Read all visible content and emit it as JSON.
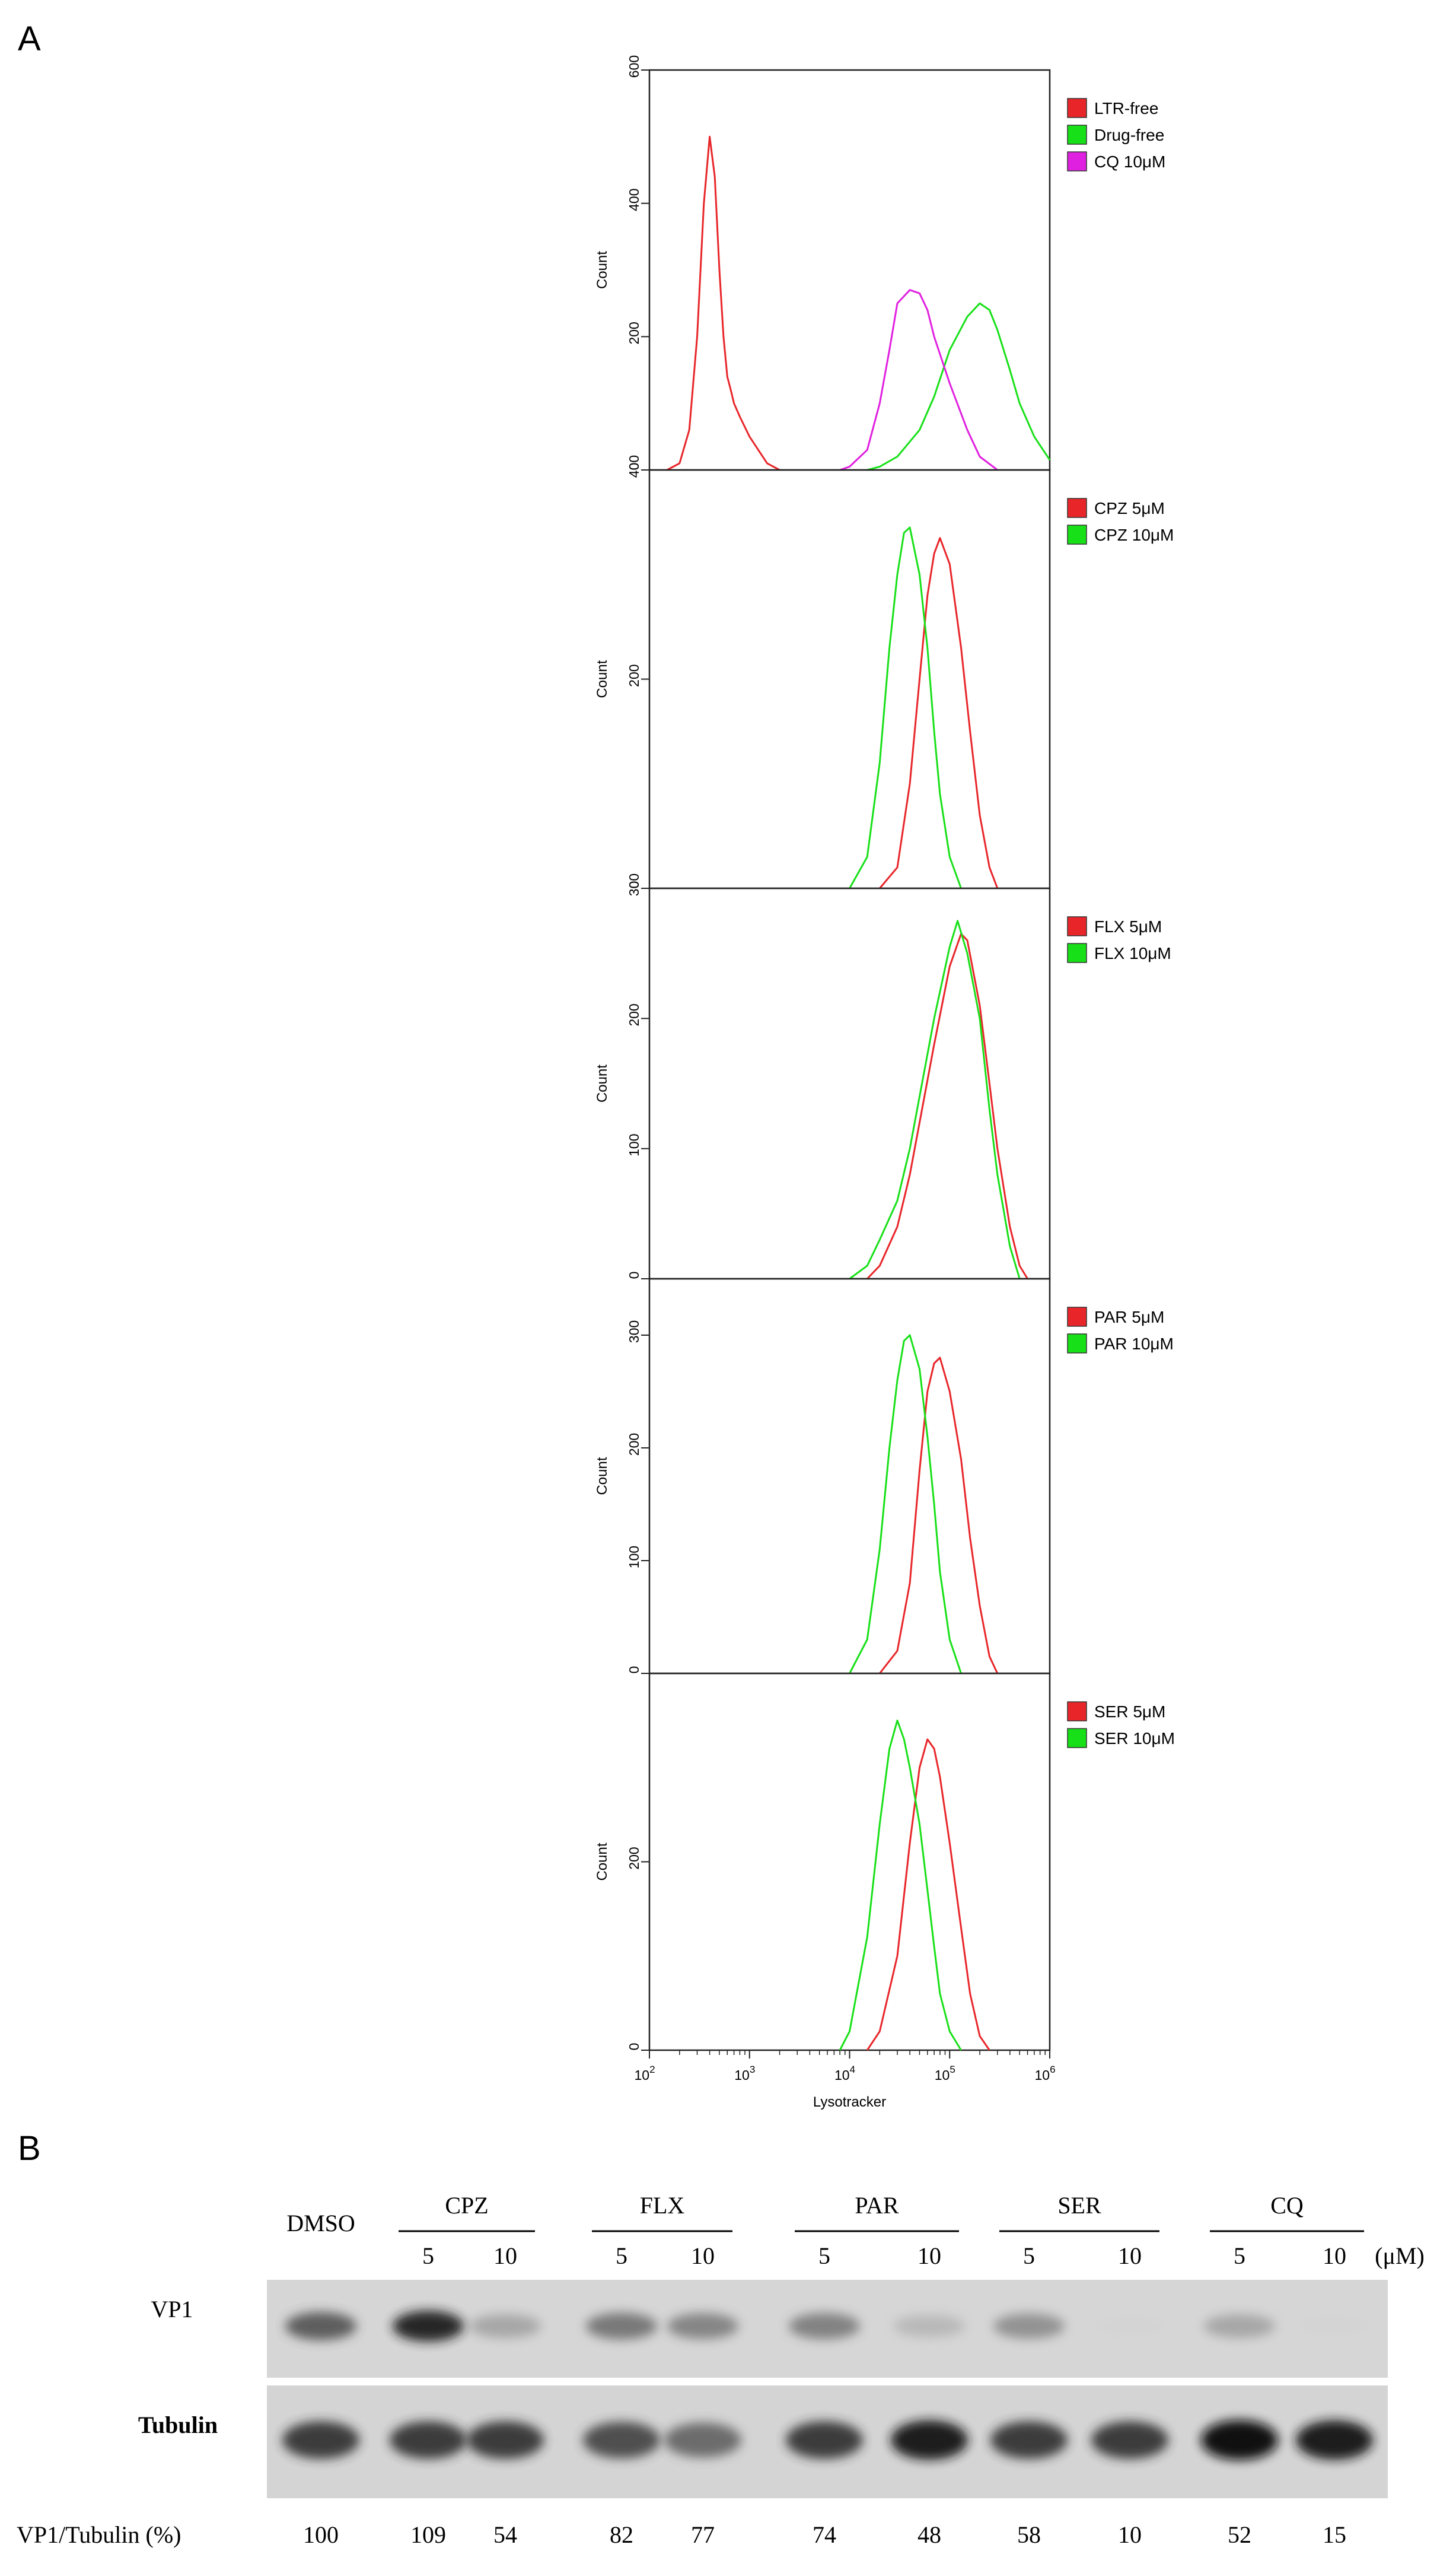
{
  "panel_labels": {
    "a": "A",
    "b": "B"
  },
  "chart_data": [
    {
      "type": "line",
      "panel": "A1",
      "xscale": "log",
      "xlim": [
        100,
        1000000
      ],
      "ylim": [
        0,
        600
      ],
      "ylabel": "Count",
      "xlabel": "",
      "yticks": [
        "0",
        "200",
        "400",
        "600"
      ],
      "series": [
        {
          "name": "LTR-free",
          "color": "#e8262a",
          "x": [
            150,
            200,
            250,
            300,
            350,
            400,
            450,
            500,
            550,
            600,
            650,
            700,
            800,
            1000,
            1500,
            2000
          ],
          "y": [
            0,
            10,
            60,
            200,
            400,
            500,
            440,
            300,
            200,
            140,
            120,
            100,
            80,
            50,
            10,
            0
          ]
        },
        {
          "name": "Drug-free",
          "color": "#18e018",
          "x": [
            15000,
            20000,
            30000,
            50000,
            70000,
            100000,
            150000,
            200000,
            250000,
            300000,
            400000,
            500000,
            700000,
            1000000
          ],
          "y": [
            0,
            5,
            20,
            60,
            110,
            180,
            230,
            250,
            240,
            210,
            150,
            100,
            50,
            15
          ]
        },
        {
          "name": "CQ 10μM",
          "color": "#e020e0",
          "x": [
            8000,
            10000,
            15000,
            20000,
            25000,
            30000,
            40000,
            50000,
            60000,
            70000,
            100000,
            150000,
            200000,
            300000
          ],
          "y": [
            0,
            5,
            30,
            100,
            180,
            250,
            270,
            265,
            240,
            200,
            130,
            60,
            20,
            0
          ]
        }
      ]
    },
    {
      "type": "line",
      "panel": "A2",
      "xscale": "log",
      "xlim": [
        100,
        1000000
      ],
      "ylim": [
        0,
        400
      ],
      "ylabel": "Count",
      "xlabel": "",
      "yticks": [
        "0",
        "200",
        "400"
      ],
      "series": [
        {
          "name": "CPZ 5μM",
          "color": "#e8262a",
          "x": [
            20000,
            30000,
            40000,
            50000,
            60000,
            70000,
            80000,
            100000,
            130000,
            160000,
            200000,
            250000,
            300000
          ],
          "y": [
            0,
            20,
            100,
            200,
            280,
            320,
            335,
            310,
            230,
            150,
            70,
            20,
            0
          ]
        },
        {
          "name": "CPZ 10μM",
          "color": "#18e018",
          "x": [
            10000,
            15000,
            20000,
            25000,
            30000,
            35000,
            40000,
            50000,
            60000,
            70000,
            80000,
            100000,
            130000
          ],
          "y": [
            0,
            30,
            120,
            230,
            300,
            340,
            345,
            300,
            230,
            150,
            90,
            30,
            0
          ]
        }
      ]
    },
    {
      "type": "line",
      "panel": "A3",
      "xscale": "log",
      "xlim": [
        100,
        1000000
      ],
      "ylim": [
        0,
        300
      ],
      "ylabel": "Count",
      "xlabel": "",
      "yticks": [
        "0",
        "100",
        "200",
        "300"
      ],
      "series": [
        {
          "name": "FLX 5μM",
          "color": "#e8262a",
          "x": [
            15000,
            20000,
            30000,
            40000,
            50000,
            70000,
            100000,
            130000,
            150000,
            200000,
            250000,
            300000,
            400000,
            500000,
            600000
          ],
          "y": [
            0,
            10,
            40,
            80,
            120,
            180,
            240,
            265,
            260,
            210,
            150,
            100,
            40,
            10,
            0
          ]
        },
        {
          "name": "FLX 10μM",
          "color": "#18e018",
          "x": [
            10000,
            15000,
            20000,
            30000,
            40000,
            50000,
            70000,
            100000,
            120000,
            150000,
            200000,
            250000,
            300000,
            400000,
            500000
          ],
          "y": [
            0,
            10,
            30,
            60,
            100,
            140,
            200,
            255,
            275,
            250,
            200,
            130,
            80,
            25,
            0
          ]
        }
      ]
    },
    {
      "type": "line",
      "panel": "A4",
      "xscale": "log",
      "xlim": [
        100,
        1000000
      ],
      "ylim": [
        0,
        350
      ],
      "ylabel": "Count",
      "xlabel": "",
      "yticks": [
        "0",
        "100",
        "200",
        "300"
      ],
      "series": [
        {
          "name": "PAR 5μM",
          "color": "#e8262a",
          "x": [
            20000,
            30000,
            40000,
            50000,
            60000,
            70000,
            80000,
            100000,
            130000,
            160000,
            200000,
            250000,
            300000
          ],
          "y": [
            0,
            20,
            80,
            180,
            250,
            275,
            280,
            250,
            190,
            120,
            60,
            15,
            0
          ]
        },
        {
          "name": "PAR 10μM",
          "color": "#18e018",
          "x": [
            10000,
            15000,
            20000,
            25000,
            30000,
            35000,
            40000,
            50000,
            60000,
            70000,
            80000,
            100000,
            130000
          ],
          "y": [
            0,
            30,
            110,
            200,
            260,
            295,
            300,
            270,
            210,
            150,
            90,
            30,
            0
          ]
        }
      ]
    },
    {
      "type": "line",
      "panel": "A5",
      "xscale": "log",
      "xlim": [
        100,
        1000000
      ],
      "ylim": [
        0,
        400
      ],
      "ylabel": "Count",
      "xlabel": "Lysotracker",
      "yticks": [
        "0",
        "200"
      ],
      "xticks": [
        {
          "base": "10",
          "exp": "2"
        },
        {
          "base": "10",
          "exp": "3"
        },
        {
          "base": "10",
          "exp": "4"
        },
        {
          "base": "10",
          "exp": "5"
        },
        {
          "base": "10",
          "exp": "6"
        }
      ],
      "series": [
        {
          "name": "SER 5μM",
          "color": "#e8262a",
          "x": [
            15000,
            20000,
            30000,
            40000,
            50000,
            60000,
            70000,
            80000,
            100000,
            130000,
            160000,
            200000,
            250000
          ],
          "y": [
            0,
            20,
            100,
            220,
            300,
            330,
            320,
            290,
            220,
            130,
            60,
            15,
            0
          ]
        },
        {
          "name": "SER 10μM",
          "color": "#18e018",
          "x": [
            8000,
            10000,
            15000,
            20000,
            25000,
            30000,
            35000,
            40000,
            50000,
            60000,
            70000,
            80000,
            100000,
            130000
          ],
          "y": [
            0,
            20,
            120,
            240,
            320,
            350,
            330,
            300,
            240,
            170,
            110,
            60,
            20,
            0
          ]
        }
      ]
    },
    {
      "type": "table",
      "panel": "B",
      "title": "",
      "lanes": [
        "DMSO",
        "CPZ 5",
        "CPZ 10",
        "FLX 5",
        "FLX 10",
        "PAR 5",
        "PAR 10",
        "SER 5",
        "SER 10",
        "CQ 5",
        "CQ 10"
      ],
      "group_labels": {
        "dmso": "DMSO",
        "groups": [
          "CPZ",
          "FLX",
          "PAR",
          "SER",
          "CQ"
        ]
      },
      "dose_labels": [
        "5",
        "10",
        "5",
        "10",
        "5",
        "10",
        "5",
        "10",
        "5",
        "10"
      ],
      "unit": "(μM)",
      "rows": {
        "vp1": "VP1",
        "tubulin": "Tubulin",
        "ratio": "VP1/Tubulin  (%)"
      },
      "ratio_values": [
        "100",
        "109",
        "54",
        "82",
        "77",
        "74",
        "48",
        "58",
        "10",
        "52",
        "15"
      ],
      "vp1_band_intensity": [
        0.75,
        0.92,
        0.45,
        0.65,
        0.6,
        0.62,
        0.35,
        0.55,
        0.12,
        0.45,
        0.12
      ],
      "tubulin_band_intensity": [
        0.85,
        0.85,
        0.85,
        0.8,
        0.7,
        0.85,
        0.95,
        0.85,
        0.85,
        0.98,
        0.95
      ]
    }
  ]
}
